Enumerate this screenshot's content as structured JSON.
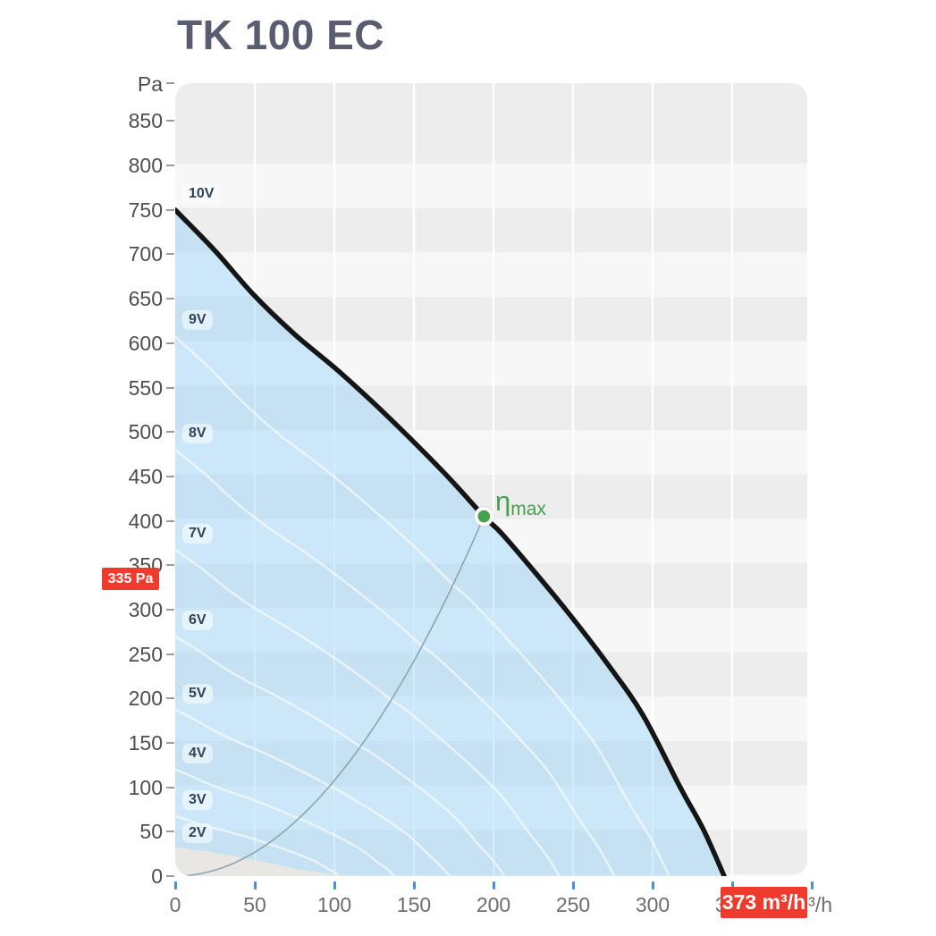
{
  "title": "TK 100 EC",
  "y_axis": {
    "unit": "Pa",
    "ticks": [
      850,
      800,
      750,
      700,
      650,
      600,
      550,
      500,
      450,
      400,
      350,
      300,
      250,
      200,
      150,
      100,
      50,
      0
    ]
  },
  "x_axis": {
    "unit": "m³/h",
    "ticks": [
      0,
      50,
      100,
      150,
      200,
      250,
      300,
      350
    ]
  },
  "eta": {
    "symbol": "η",
    "sub": "max"
  },
  "badges": {
    "pressure": "335 Pa",
    "flow": "373 m³/h"
  },
  "voltage_labels": [
    "10V",
    "9V",
    "8V",
    "7V",
    "6V",
    "5V",
    "4V",
    "3V",
    "2V"
  ],
  "colors": {
    "title": "#5a5c70",
    "band_dark": "#ededed",
    "band_light": "#f7f7f7",
    "blue_fill": "#8cd2fa",
    "blue_fill_opacity": 0.4,
    "curve_black": "#151515",
    "voltage_curve_white": "#ffffff",
    "efficiency_line": "#8fa3b0",
    "green": "#44a14c",
    "badge_red": "#ef3a2e",
    "x_tick_blue": "#4a90d8",
    "axis_text": "#4e4e4e",
    "dead_zone_gray": "#e8e7e4"
  },
  "chart_data": {
    "type": "line",
    "title": "TK 100 EC",
    "xlabel": "m³/h",
    "ylabel": "Pa",
    "xlim": [
      0,
      400
    ],
    "ylim": [
      0,
      893
    ],
    "x_ticks": [
      0,
      50,
      100,
      150,
      200,
      250,
      300,
      350
    ],
    "y_ticks": [
      0,
      50,
      100,
      150,
      200,
      250,
      300,
      350,
      400,
      450,
      500,
      550,
      600,
      650,
      700,
      750,
      800,
      850
    ],
    "grid": "alternating horizontal bands every 50 Pa, white vertical gridlines every 50 m³/h",
    "legend_position": "none",
    "main_curve": {
      "name": "10V",
      "points": [
        [
          0,
          750
        ],
        [
          25,
          704
        ],
        [
          49,
          655
        ],
        [
          75,
          610
        ],
        [
          103,
          568
        ],
        [
          135,
          515
        ],
        [
          169,
          454
        ],
        [
          194,
          405
        ],
        [
          205,
          386
        ],
        [
          227,
          340
        ],
        [
          249,
          292
        ],
        [
          272,
          238
        ],
        [
          294,
          181
        ],
        [
          317,
          101
        ],
        [
          332,
          52
        ],
        [
          345,
          0
        ]
      ]
    },
    "voltage_curves": {
      "volts": [
        9,
        8,
        7,
        6,
        5,
        4,
        3,
        2
      ],
      "law": "scaled from 10V curve: Q ∝ V, P ∝ V²"
    },
    "efficiency_point": {
      "label": "ηmax",
      "flow": 194,
      "pressure": 405
    },
    "efficiency_curve": "parabola P = 405·(Q/194)² from origin to ηmax point",
    "marked_values": {
      "pressure_pa": 335,
      "flow_m3h": 373
    }
  }
}
